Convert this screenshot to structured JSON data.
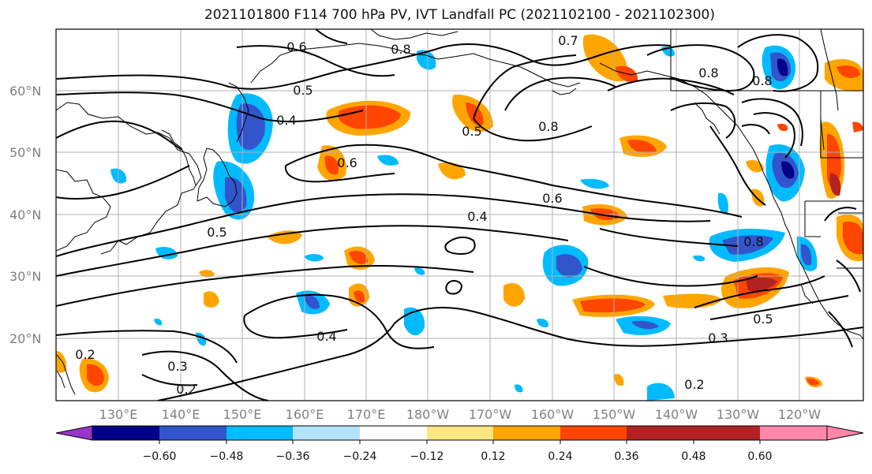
{
  "title": "2021101800 F114 700 hPa PV, IVT Landfall PC (2021102100 - 2021102300)",
  "lat_labels": [
    "60°N",
    "50°N",
    "40°N",
    "30°N",
    "20°N"
  ],
  "lon_labels": [
    "130°E",
    "140°E",
    "150°E",
    "160°E",
    "170°E",
    "180°W",
    "170°W",
    "160°W",
    "150°W",
    "140°W",
    "130°W",
    "120°W"
  ],
  "contour_labels": [
    "0.6",
    "0.8",
    "0.5",
    "0.4",
    "0.6",
    "0.5",
    "0.8",
    "0.7",
    "0.8",
    "0.8",
    "0.6",
    "0.4",
    "0.5",
    "0.8",
    "0.5",
    "0.4",
    "0.3",
    "0.2",
    "0.3",
    "0.2",
    "0.2"
  ],
  "colorbar": {
    "colors": [
      "#9933cc",
      "#000088",
      "#3355cc",
      "#00bbff",
      "#b3e2ff",
      "#ffffff",
      "#ffe680",
      "#ffa500",
      "#ff4500",
      "#b22222",
      "#ff88aa"
    ],
    "tick_labels": [
      "−0.60",
      "−0.48",
      "−0.36",
      "−0.24",
      "−0.12",
      "0.12",
      "0.24",
      "0.36",
      "0.48",
      "0.60"
    ]
  }
}
